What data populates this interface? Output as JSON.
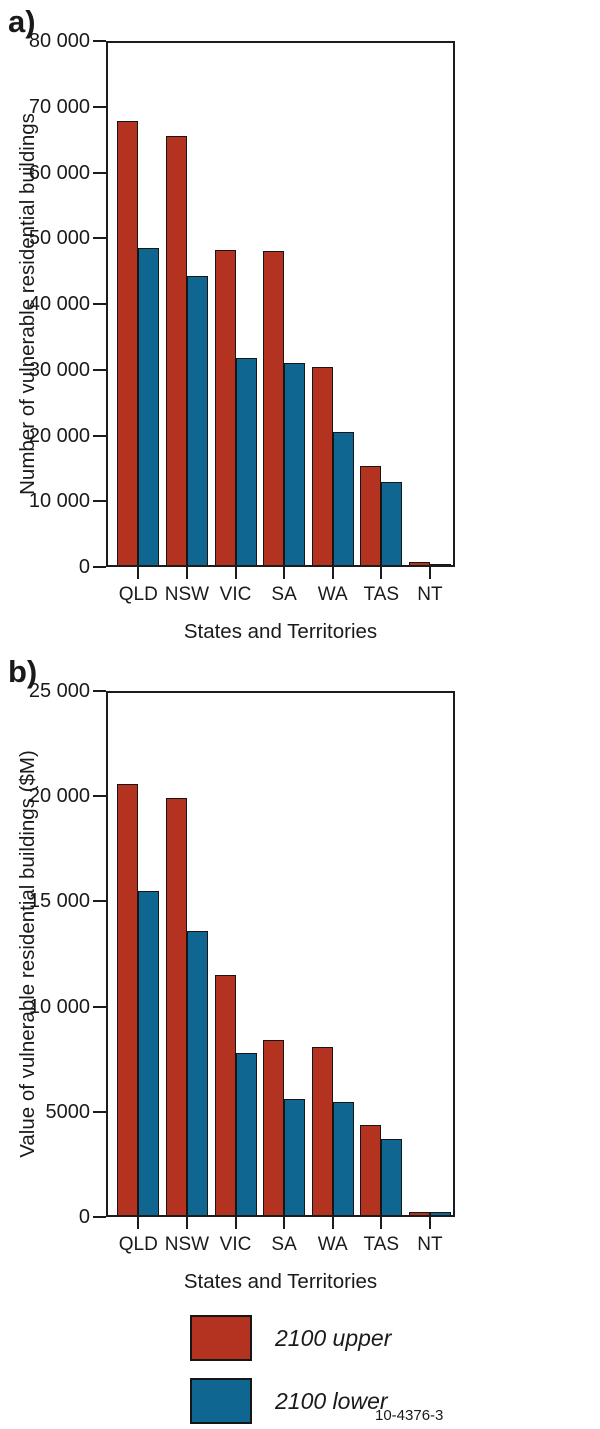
{
  "figure_code": "10-4376-3",
  "legend": {
    "position": "bottom",
    "items": [
      {
        "label": "2100 upper",
        "color": "#b33220"
      },
      {
        "label": "2100 lower",
        "color": "#0f6690"
      }
    ]
  },
  "chart_data": [
    {
      "type": "bar",
      "panel_label": "a)",
      "title": "",
      "xlabel": "States and Territories",
      "ylabel": "Number of vulnerable residential buildings",
      "categories": [
        "QLD",
        "NSW",
        "VIC",
        "SA",
        "WA",
        "TAS",
        "NT"
      ],
      "series": [
        {
          "name": "2100 upper",
          "color": "#b33220",
          "values": [
            67500,
            65200,
            47900,
            47700,
            30100,
            15000,
            400
          ]
        },
        {
          "name": "2100 lower",
          "color": "#0f6690",
          "values": [
            48200,
            43900,
            31500,
            30800,
            20300,
            12600,
            200
          ]
        }
      ],
      "ylim": [
        0,
        80000
      ],
      "yticks": [
        {
          "value": 0,
          "label": "0"
        },
        {
          "value": 10000,
          "label": "10 000"
        },
        {
          "value": 20000,
          "label": "20 000"
        },
        {
          "value": 30000,
          "label": "30 000"
        },
        {
          "value": 40000,
          "label": "40 000"
        },
        {
          "value": 50000,
          "label": "50 000"
        },
        {
          "value": 60000,
          "label": "60 000"
        },
        {
          "value": 70000,
          "label": "70 000"
        },
        {
          "value": 80000,
          "label": "80 000"
        }
      ],
      "grid": false,
      "legend_position": "none"
    },
    {
      "type": "bar",
      "panel_label": "b)",
      "title": "",
      "xlabel": "States and Territories",
      "ylabel": "Value of vulnerable residential buildings ($M)",
      "categories": [
        "QLD",
        "NSW",
        "VIC",
        "SA",
        "WA",
        "TAS",
        "NT"
      ],
      "series": [
        {
          "name": "2100 upper",
          "color": "#b33220",
          "values": [
            20500,
            19800,
            11400,
            8300,
            8000,
            4300,
            150
          ]
        },
        {
          "name": "2100 lower",
          "color": "#0f6690",
          "values": [
            15400,
            13500,
            7700,
            5500,
            5350,
            3600,
            150
          ]
        }
      ],
      "ylim": [
        0,
        25000
      ],
      "yticks": [
        {
          "value": 0,
          "label": "0"
        },
        {
          "value": 5000,
          "label": "5000"
        },
        {
          "value": 10000,
          "label": "10 000"
        },
        {
          "value": 15000,
          "label": "15 000"
        },
        {
          "value": 20000,
          "label": "20 000"
        },
        {
          "value": 25000,
          "label": "25 000"
        }
      ],
      "grid": false,
      "legend_position": "none"
    }
  ]
}
